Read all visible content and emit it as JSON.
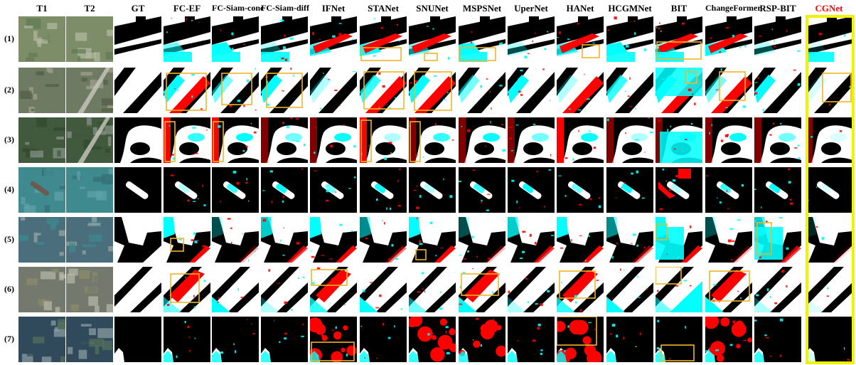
{
  "columns": [
    "T1",
    "T2",
    "GT",
    "FC-EF",
    "FC-Siam-conc",
    "FC-Siam-diff",
    "IFNet",
    "STANet",
    "SNUNet",
    "MSPSNet",
    "UperNet",
    "HANet",
    "HCGMNet",
    "BIT",
    "ChangeFormer",
    "RSP-BIT",
    "CGNet"
  ],
  "rows": [
    "(1)",
    "(2)",
    "(3)",
    "(4)",
    "(5)",
    "(6)",
    "(7)"
  ],
  "colors": {
    "true_positive": "#ffffff",
    "true_negative": "#000000",
    "false_positive": "#ff0000",
    "false_negative": "#00ffff",
    "focus_box": "#f0b428",
    "highlight_frame": "#f2f200",
    "highlight_label": "#ff0000"
  }
}
